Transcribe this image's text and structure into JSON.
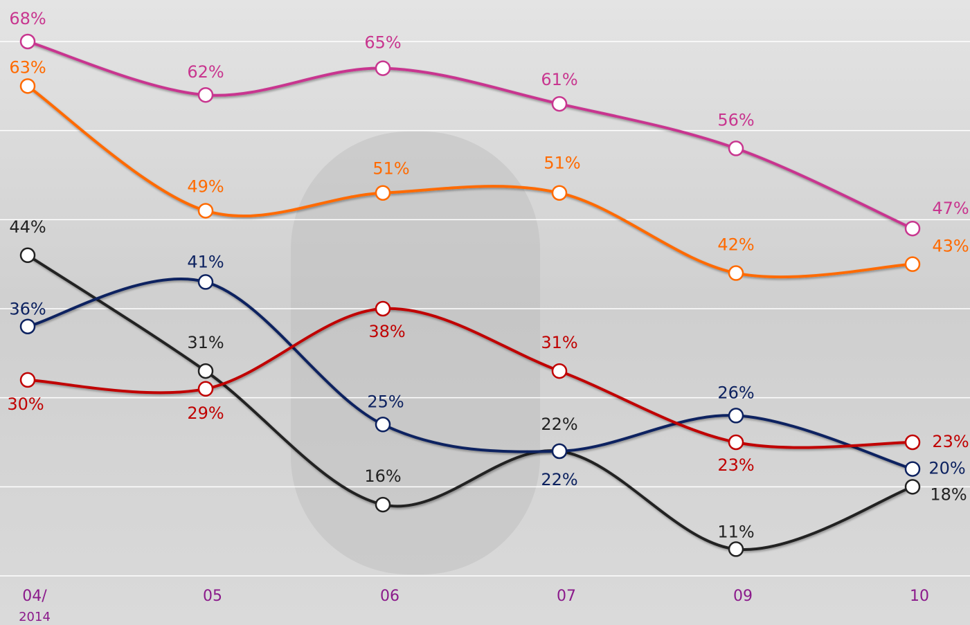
{
  "chart_data": {
    "type": "line",
    "categories": [
      "04/\n2014",
      "05",
      "06",
      "07",
      "09",
      "10"
    ],
    "ylim": [
      8,
      68
    ],
    "yticks": [
      8,
      18,
      28,
      38,
      48,
      58,
      68
    ],
    "grid": true,
    "series": [
      {
        "color": "#c8368f",
        "values": [
          68,
          62,
          65,
          61,
          56,
          47
        ],
        "value_labels": [
          "68%",
          "62%",
          "65%",
          "61%",
          "56%",
          "47%"
        ]
      },
      {
        "color": "#ff6a00",
        "values": [
          63,
          49,
          51,
          51,
          42,
          43
        ],
        "value_labels": [
          "63%",
          "49%",
          "51%",
          "51%",
          "42%",
          "43%"
        ]
      },
      {
        "color": "#222222",
        "values": [
          44,
          31,
          16,
          22,
          11,
          18
        ],
        "value_labels": [
          "44%",
          "31%",
          "16%",
          "22%",
          "11%",
          "18%"
        ]
      },
      {
        "color": "#0d2260",
        "values": [
          36,
          41,
          25,
          22,
          26,
          20
        ],
        "value_labels": [
          "36%",
          "41%",
          "25%",
          "22%",
          "26%",
          "20%"
        ]
      },
      {
        "color": "#c00000",
        "values": [
          30,
          29,
          38,
          31,
          23,
          23
        ],
        "value_labels": [
          "30%",
          "29%",
          "38%",
          "31%",
          "23%",
          "23%"
        ]
      }
    ]
  }
}
